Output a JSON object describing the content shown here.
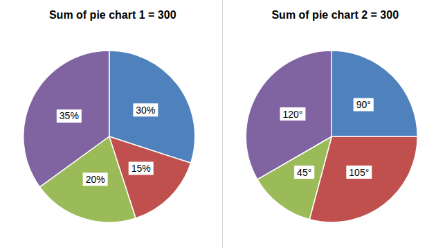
{
  "chart_data": [
    {
      "type": "pie",
      "title": "Sum of pie chart 1 = 300",
      "values": [
        30,
        15,
        20,
        35
      ],
      "value_labels": [
        "30%",
        "15%",
        "20%",
        "35%"
      ],
      "colors": [
        "#4f81bd",
        "#c0504d",
        "#9bbb59",
        "#8064a2"
      ],
      "data_labels": true
    },
    {
      "type": "pie",
      "title": "Sum of pie chart 2 = 300",
      "values": [
        90,
        105,
        45,
        120
      ],
      "value_labels": [
        "90°",
        "105°",
        "45°",
        "120°"
      ],
      "colors": [
        "#4f81bd",
        "#c0504d",
        "#9bbb59",
        "#8064a2"
      ],
      "data_labels": true
    }
  ]
}
